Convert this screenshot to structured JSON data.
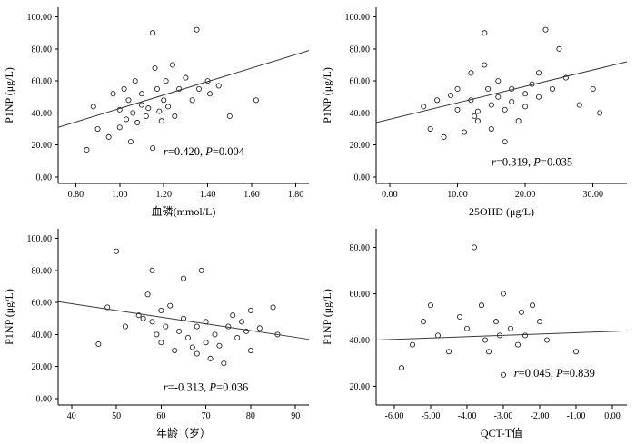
{
  "figure": {
    "background": "#ffffff",
    "axis_color": "#000000",
    "point_color": "#2b2b2b",
    "trend_color": "#3a3a3a"
  },
  "chart_data": [
    {
      "type": "scatter",
      "name": "blood-phosphorus-vs-p1np",
      "xlabel": "血磷(mmol/L)",
      "ylabel": "P1NP (μg/L)",
      "xlim": [
        0.72,
        1.86
      ],
      "ylim": [
        -4,
        106
      ],
      "xticks": [
        0.8,
        1.0,
        1.2,
        1.4,
        1.6,
        1.8
      ],
      "xtick_labels": [
        "0.80",
        "1.00",
        "1.20",
        "1.40",
        "1.60",
        "1.80"
      ],
      "yticks": [
        0,
        20,
        40,
        60,
        80,
        100
      ],
      "ytick_labels": [
        "0.00",
        "20.00",
        "40.00",
        "60.00",
        "80.00",
        "100.00"
      ],
      "points": [
        [
          0.85,
          17
        ],
        [
          0.88,
          44
        ],
        [
          0.9,
          30
        ],
        [
          0.95,
          25
        ],
        [
          0.97,
          52
        ],
        [
          1.0,
          42
        ],
        [
          1.0,
          31
        ],
        [
          1.02,
          55
        ],
        [
          1.03,
          36
        ],
        [
          1.04,
          48
        ],
        [
          1.05,
          22
        ],
        [
          1.06,
          40
        ],
        [
          1.07,
          60
        ],
        [
          1.08,
          34
        ],
        [
          1.1,
          45
        ],
        [
          1.1,
          52
        ],
        [
          1.12,
          38
        ],
        [
          1.13,
          43
        ],
        [
          1.15,
          90
        ],
        [
          1.15,
          18
        ],
        [
          1.16,
          68
        ],
        [
          1.17,
          55
        ],
        [
          1.18,
          41
        ],
        [
          1.19,
          35
        ],
        [
          1.2,
          48
        ],
        [
          1.21,
          60
        ],
        [
          1.22,
          44
        ],
        [
          1.24,
          70
        ],
        [
          1.25,
          38
        ],
        [
          1.27,
          55
        ],
        [
          1.3,
          62
        ],
        [
          1.33,
          48
        ],
        [
          1.35,
          92
        ],
        [
          1.36,
          55
        ],
        [
          1.4,
          60
        ],
        [
          1.41,
          52
        ],
        [
          1.45,
          57
        ],
        [
          1.5,
          38
        ],
        [
          1.62,
          48
        ]
      ],
      "trend": {
        "x1": 0.72,
        "y1": 31,
        "x2": 1.86,
        "y2": 79
      },
      "annotation": {
        "r": "0.420",
        "p": "0.004",
        "fx": 0.42,
        "fy": 0.84
      }
    },
    {
      "type": "scatter",
      "name": "25ohd-vs-p1np",
      "xlabel": "25OHD (μg/L)",
      "ylabel": "P1NP (μg/L)",
      "xlim": [
        -2,
        35
      ],
      "ylim": [
        -4,
        106
      ],
      "xticks": [
        0,
        10,
        20,
        30
      ],
      "xtick_labels": [
        "0.00",
        "10.00",
        "20.00",
        "30.00"
      ],
      "yticks": [
        0,
        20,
        40,
        60,
        80,
        100
      ],
      "ytick_labels": [
        "0.00",
        "20.00",
        "40.00",
        "60.00",
        "80.00",
        "100.00"
      ],
      "points": [
        [
          5,
          44
        ],
        [
          6,
          30
        ],
        [
          7,
          48
        ],
        [
          8,
          25
        ],
        [
          9,
          51
        ],
        [
          10,
          55
        ],
        [
          10,
          42
        ],
        [
          11,
          28
        ],
        [
          12,
          65
        ],
        [
          12,
          48
        ],
        [
          12.5,
          38
        ],
        [
          13,
          41
        ],
        [
          13,
          35
        ],
        [
          14,
          90
        ],
        [
          14,
          70
        ],
        [
          14.5,
          55
        ],
        [
          15,
          45
        ],
        [
          15,
          30
        ],
        [
          16,
          60
        ],
        [
          16,
          50
        ],
        [
          17,
          42
        ],
        [
          17,
          22
        ],
        [
          18,
          55
        ],
        [
          18,
          47
        ],
        [
          19,
          35
        ],
        [
          20,
          52
        ],
        [
          20,
          44
        ],
        [
          21,
          58
        ],
        [
          22,
          65
        ],
        [
          22,
          50
        ],
        [
          23,
          92
        ],
        [
          24,
          55
        ],
        [
          25,
          80
        ],
        [
          26,
          62
        ],
        [
          28,
          45
        ],
        [
          30,
          55
        ],
        [
          31,
          40
        ]
      ],
      "trend": {
        "x1": -2,
        "y1": 34,
        "x2": 35,
        "y2": 72
      },
      "annotation": {
        "r": "0.319",
        "p": "0.035",
        "fx": 0.46,
        "fy": 0.9
      }
    },
    {
      "type": "scatter",
      "name": "age-vs-p1np",
      "xlabel": "年龄（岁）",
      "ylabel": "P1NP (μg/L)",
      "xlim": [
        37,
        93
      ],
      "ylim": [
        -4,
        106
      ],
      "xticks": [
        40,
        50,
        60,
        70,
        80,
        90
      ],
      "xtick_labels": [
        "40",
        "50",
        "60",
        "70",
        "80",
        "90"
      ],
      "yticks": [
        0,
        20,
        40,
        60,
        80,
        100
      ],
      "ytick_labels": [
        "0.00",
        "20.00",
        "40.00",
        "60.00",
        "80.00",
        "100.00"
      ],
      "points": [
        [
          46,
          34
        ],
        [
          48,
          57
        ],
        [
          50,
          92
        ],
        [
          52,
          45
        ],
        [
          55,
          52
        ],
        [
          56,
          50
        ],
        [
          57,
          65
        ],
        [
          58,
          80
        ],
        [
          58,
          48
        ],
        [
          59,
          40
        ],
        [
          60,
          55
        ],
        [
          60,
          35
        ],
        [
          61,
          45
        ],
        [
          62,
          58
        ],
        [
          63,
          30
        ],
        [
          64,
          42
        ],
        [
          65,
          75
        ],
        [
          65,
          50
        ],
        [
          66,
          38
        ],
        [
          67,
          32
        ],
        [
          68,
          45
        ],
        [
          68,
          28
        ],
        [
          69,
          80
        ],
        [
          70,
          48
        ],
        [
          70,
          35
        ],
        [
          71,
          25
        ],
        [
          72,
          40
        ],
        [
          73,
          33
        ],
        [
          74,
          22
        ],
        [
          75,
          45
        ],
        [
          76,
          52
        ],
        [
          77,
          38
        ],
        [
          78,
          48
        ],
        [
          79,
          42
        ],
        [
          80,
          55
        ],
        [
          80,
          30
        ],
        [
          82,
          44
        ],
        [
          85,
          57
        ],
        [
          86,
          40
        ]
      ],
      "trend": {
        "x1": 37,
        "y1": 60.5,
        "x2": 93,
        "y2": 37
      },
      "annotation": {
        "r": "-0.313",
        "p": "0.036",
        "fx": 0.42,
        "fy": 0.92
      }
    },
    {
      "type": "scatter",
      "name": "qct-t-vs-p1np",
      "xlabel": "QCT-T值",
      "ylabel": "P1NP (μg/L)",
      "xlim": [
        -6.5,
        0.4
      ],
      "ylim": [
        12,
        88
      ],
      "xticks": [
        -6,
        -5,
        -4,
        -3,
        -2,
        -1,
        0
      ],
      "xtick_labels": [
        "-6.00",
        "-5.00",
        "-4.00",
        "-3.00",
        "-2.00",
        "-1.00",
        "0.00"
      ],
      "yticks": [
        20,
        40,
        60,
        80
      ],
      "ytick_labels": [
        "20.00",
        "40.00",
        "60.00",
        "80.00"
      ],
      "points": [
        [
          -5.8,
          28
        ],
        [
          -5.5,
          38
        ],
        [
          -5.2,
          48
        ],
        [
          -5.0,
          55
        ],
        [
          -4.8,
          42
        ],
        [
          -4.5,
          35
        ],
        [
          -4.2,
          50
        ],
        [
          -4.0,
          45
        ],
        [
          -3.8,
          80
        ],
        [
          -3.6,
          55
        ],
        [
          -3.5,
          40
        ],
        [
          -3.4,
          35
        ],
        [
          -3.2,
          48
        ],
        [
          -3.1,
          42
        ],
        [
          -3.0,
          60
        ],
        [
          -3.0,
          25
        ],
        [
          -2.8,
          45
        ],
        [
          -2.6,
          38
        ],
        [
          -2.5,
          52
        ],
        [
          -2.4,
          42
        ],
        [
          -2.2,
          55
        ],
        [
          -2.0,
          48
        ],
        [
          -1.8,
          40
        ],
        [
          -1.0,
          35
        ]
      ],
      "trend": {
        "x1": -6.5,
        "y1": 40,
        "x2": 0.4,
        "y2": 44
      },
      "annotation": {
        "r": "0.045",
        "p": "0.839",
        "fx": 0.55,
        "fy": 0.84
      }
    }
  ]
}
